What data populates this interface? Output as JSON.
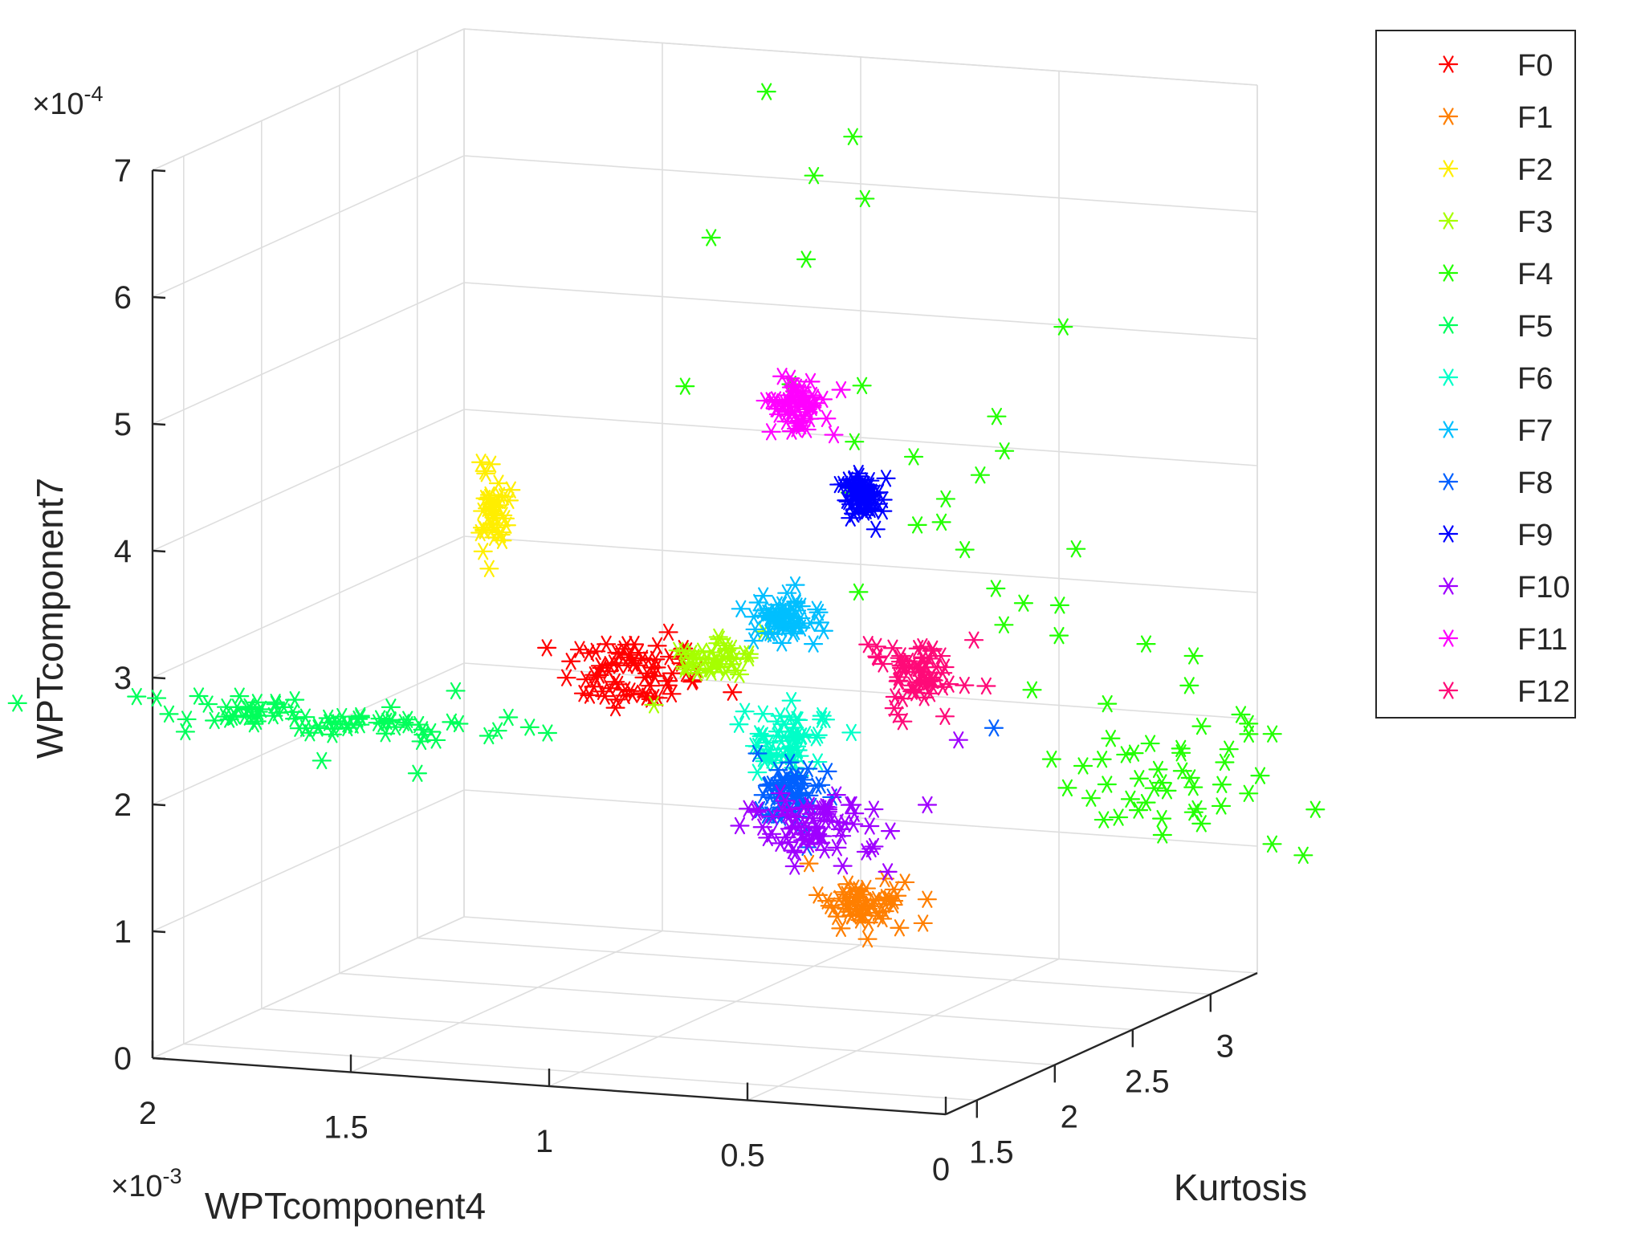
{
  "chart_data": {
    "type": "scatter3d",
    "marker": "asterisk",
    "x_axis": {
      "label": "WPTcomponent4",
      "exponent_base": "×10",
      "exponent_power": "-3",
      "range": [
        0,
        2
      ],
      "ticks": [
        0,
        0.5,
        1,
        1.5,
        2
      ],
      "tick_labels": [
        "0",
        "0.5",
        "1",
        "1.5",
        "2"
      ]
    },
    "y_axis": {
      "label": "Kurtosis",
      "range": [
        1.3,
        3.3
      ],
      "ticks": [
        1.5,
        2,
        2.5,
        3
      ],
      "tick_labels": [
        "1.5",
        "2",
        "2.5",
        "3"
      ]
    },
    "z_axis": {
      "label": "WPTcomponent7",
      "exponent_base": "×10",
      "exponent_power": "-4",
      "range": [
        0,
        7
      ],
      "ticks": [
        0,
        1,
        2,
        3,
        4,
        5,
        6,
        7
      ],
      "tick_labels": [
        "0",
        "1",
        "2",
        "3",
        "4",
        "5",
        "6",
        "7"
      ]
    },
    "grid": true,
    "legend_position": "top-right outside",
    "series": [
      {
        "name": "F0",
        "color": "#ff0000",
        "n": 70,
        "center": [
          1.08,
          2.05,
          2.82
        ],
        "spread": [
          0.08,
          0.07,
          0.13
        ],
        "outliers": [
          [
            1.32,
            2.1,
            2.94
          ],
          [
            1.0,
            1.85,
            3.05
          ],
          [
            0.93,
            2.0,
            2.88
          ],
          [
            0.97,
            2.4,
            2.5
          ]
        ]
      },
      {
        "name": "F1",
        "color": "#ff7f00",
        "n": 55,
        "center": [
          0.5,
          2.05,
          1.15
        ],
        "spread": [
          0.05,
          0.06,
          0.09
        ],
        "outliers": [
          [
            0.45,
            2.3,
            0.85
          ],
          [
            0.62,
            2.0,
            1.45
          ],
          [
            0.45,
            1.95,
            1.05
          ]
        ]
      },
      {
        "name": "F2",
        "color": "#ffee00",
        "n": 40,
        "center": [
          1.5,
          2.2,
          3.9
        ],
        "spread": [
          0.02,
          0.02,
          0.14
        ],
        "outliers": [
          [
            1.45,
            2.2,
            4.1
          ],
          [
            1.52,
            2.2,
            3.6
          ]
        ]
      },
      {
        "name": "F3",
        "color": "#a6ff00",
        "n": 45,
        "center": [
          1.02,
          2.38,
          2.75
        ],
        "spread": [
          0.04,
          0.06,
          0.07
        ],
        "outliers": [
          [
            1.05,
            2.1,
            2.55
          ],
          [
            0.95,
            2.55,
            2.9
          ]
        ]
      },
      {
        "name": "F4",
        "color": "#22ff00",
        "points": [
          [
            1.1,
            2.95,
            6.9
          ],
          [
            1.0,
            3.25,
            6.4
          ],
          [
            1.02,
            3.05,
            6.2
          ],
          [
            0.95,
            3.2,
            5.95
          ],
          [
            1.22,
            2.9,
            5.75
          ],
          [
            1.0,
            2.95,
            5.6
          ],
          [
            0.45,
            3.2,
            5.05
          ],
          [
            1.05,
            2.3,
            4.95
          ],
          [
            0.92,
            2.65,
            4.8
          ],
          [
            0.82,
            2.85,
            4.7
          ],
          [
            0.78,
            2.7,
            4.35
          ],
          [
            0.67,
            2.8,
            4.2
          ],
          [
            0.5,
            2.9,
            4.5
          ],
          [
            0.5,
            2.95,
            4.2
          ],
          [
            0.62,
            3.1,
            3.9
          ],
          [
            0.85,
            2.85,
            3.85
          ],
          [
            0.6,
            2.8,
            3.7
          ],
          [
            0.7,
            2.9,
            3.6
          ],
          [
            0.55,
            2.7,
            3.95
          ],
          [
            0.6,
            2.95,
            3.4
          ],
          [
            0.75,
            2.65,
            3.2
          ],
          [
            0.3,
            2.9,
            3.5
          ],
          [
            0.4,
            3.05,
            2.95
          ],
          [
            0.55,
            3.2,
            2.85
          ],
          [
            0.5,
            3.3,
            2.55
          ],
          [
            0.45,
            3.0,
            2.3
          ],
          [
            0.28,
            3.05,
            2.2
          ],
          [
            0.62,
            3.2,
            2.95
          ],
          [
            0.58,
            3.15,
            2.7
          ],
          [
            0.3,
            3.35,
            2.5
          ],
          [
            0.2,
            3.4,
            2.4
          ],
          [
            0.25,
            3.5,
            2.1
          ],
          [
            0.35,
            3.4,
            1.6
          ],
          [
            0.3,
            3.45,
            1.35
          ],
          [
            0.25,
            3.55,
            1.1
          ],
          [
            0.15,
            3.7,
            1.3
          ],
          [
            0.1,
            3.65,
            0.8
          ],
          [
            0.05,
            3.8,
            1.0
          ],
          [
            0.1,
            3.85,
            0.6
          ],
          [
            0.2,
            3.2,
            1.1
          ],
          [
            0.28,
            3.25,
            1.25
          ],
          [
            0.22,
            3.28,
            1.4
          ],
          [
            0.18,
            3.35,
            1.2
          ],
          [
            0.32,
            3.15,
            1.5
          ],
          [
            0.3,
            3.22,
            1.7
          ],
          [
            0.25,
            3.3,
            1.55
          ],
          [
            0.2,
            3.38,
            1.45
          ],
          [
            0.15,
            3.5,
            1.62
          ],
          [
            0.12,
            3.55,
            1.8
          ],
          [
            0.35,
            3.25,
            1.8
          ],
          [
            0.27,
            3.3,
            1.75
          ],
          [
            0.24,
            3.42,
            1.65
          ],
          [
            0.2,
            3.6,
            1.45
          ],
          [
            0.32,
            3.3,
            1.3
          ],
          [
            0.38,
            3.2,
            1.35
          ],
          [
            0.12,
            3.5,
            1.9
          ],
          [
            -0.15,
            4.2,
            1.85
          ],
          [
            -0.1,
            4.3,
            1.55
          ],
          [
            0.28,
            3.4,
            1.1
          ],
          [
            0.35,
            3.3,
            1.15
          ],
          [
            0.15,
            3.45,
            1.2
          ],
          [
            0.4,
            3.2,
            1.6
          ],
          [
            0.22,
            3.38,
            1.5
          ],
          [
            0.42,
            3.15,
            1.45
          ],
          [
            0.18,
            3.4,
            1.85
          ],
          [
            0.26,
            3.3,
            1.4
          ],
          [
            0.3,
            3.35,
            1.25
          ],
          [
            0.16,
            3.48,
            1.35
          ],
          [
            0.08,
            3.6,
            1.7
          ],
          [
            0.12,
            3.55,
            1.25
          ],
          [
            0.36,
            3.22,
            1.65
          ],
          [
            0.2,
            3.45,
            1.05
          ],
          [
            0.1,
            3.5,
            1.75
          ],
          [
            0.44,
            3.1,
            1.7
          ],
          [
            0.34,
            3.18,
            1.2
          ],
          [
            0.2,
            3.32,
            1.68
          ],
          [
            0.24,
            3.5,
            1.3
          ],
          [
            0.29,
            3.28,
            1.48
          ]
        ]
      },
      {
        "name": "F5",
        "color": "#00ff5a",
        "n": 80,
        "center": [
          1.75,
          1.9,
          2.38
        ],
        "spread": [
          0.25,
          0.05,
          0.06
        ],
        "outliers": [
          [
            1.45,
            1.6,
            2.2
          ],
          [
            1.75,
            1.75,
            2.15
          ],
          [
            1.85,
            1.9,
            2.3
          ],
          [
            1.55,
            2.1,
            2.55
          ]
        ]
      },
      {
        "name": "F6",
        "color": "#00ffc8",
        "n": 60,
        "center": [
          0.75,
          2.2,
          2.3
        ],
        "spread": [
          0.05,
          0.04,
          0.12
        ]
      },
      {
        "name": "F7",
        "color": "#00bfff",
        "n": 60,
        "center": [
          0.92,
          2.62,
          2.95
        ],
        "spread": [
          0.04,
          0.03,
          0.09
        ]
      },
      {
        "name": "F8",
        "color": "#0060ff",
        "n": 60,
        "center": [
          0.76,
          2.25,
          1.85
        ],
        "spread": [
          0.05,
          0.05,
          0.15
        ],
        "outliers": [
          [
            0.35,
            2.5,
            2.3
          ]
        ]
      },
      {
        "name": "F9",
        "color": "#0000ff",
        "n": 60,
        "center": [
          0.82,
          2.85,
          3.8
        ],
        "spread": [
          0.025,
          0.02,
          0.09
        ]
      },
      {
        "name": "F10",
        "color": "#9f00ff",
        "n": 70,
        "center": [
          0.68,
          2.2,
          1.6
        ],
        "spread": [
          0.07,
          0.06,
          0.15
        ],
        "outliers": [
          [
            0.4,
            2.4,
            2.25
          ],
          [
            0.4,
            2.2,
            1.85
          ],
          [
            0.5,
            2.2,
            1.3
          ]
        ]
      },
      {
        "name": "F11",
        "color": "#ff00ff",
        "n": 60,
        "center": [
          1.02,
          2.95,
          4.45
        ],
        "spread": [
          0.035,
          0.02,
          0.09
        ],
        "outliers": [
          [
            0.95,
            3.0,
            4.2
          ]
        ]
      },
      {
        "name": "F12",
        "color": "#ff0a78",
        "n": 60,
        "center": [
          0.58,
          2.55,
          2.65
        ],
        "spread": [
          0.05,
          0.05,
          0.12
        ],
        "outliers": [
          [
            0.42,
            2.55,
            2.95
          ],
          [
            0.58,
            2.5,
            2.3
          ]
        ]
      }
    ]
  }
}
